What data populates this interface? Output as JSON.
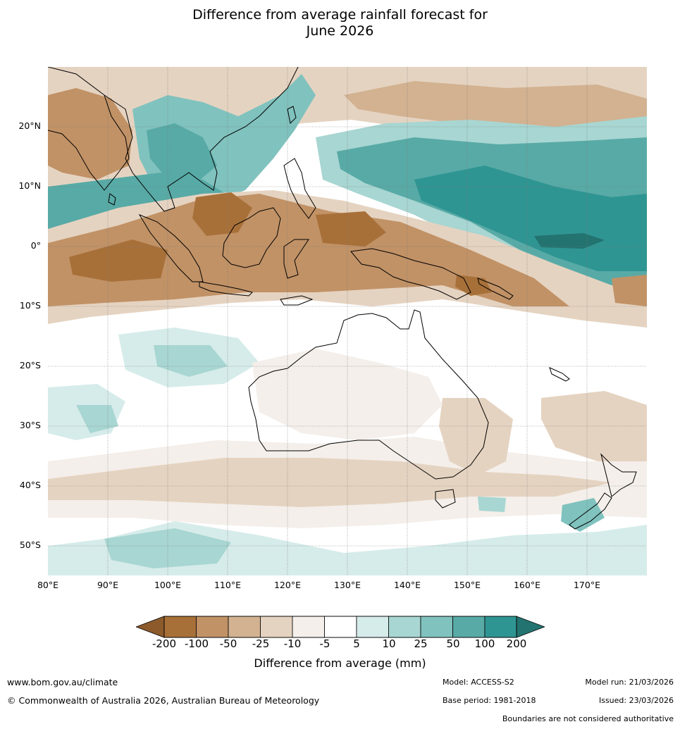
{
  "title": {
    "line1": "Difference from average rainfall forecast for",
    "line2": "June 2026"
  },
  "map": {
    "latitude_labels": [
      "20°N",
      "10°N",
      "0°",
      "10°S",
      "20°S",
      "30°S",
      "40°S",
      "50°S"
    ],
    "longitude_labels": [
      "80°E",
      "90°E",
      "100°E",
      "110°E",
      "120°E",
      "130°E",
      "140°E",
      "150°E",
      "160°E",
      "170°E"
    ],
    "extent": {
      "lon_min": 80,
      "lon_max": 180,
      "lat_min": -55,
      "lat_max": 30
    }
  },
  "colorbar": {
    "title": "Difference from average (mm)",
    "tick_labels": [
      "-200",
      "-100",
      "-50",
      "-25",
      "-10",
      "-5",
      "5",
      "10",
      "25",
      "50",
      "100",
      "200"
    ],
    "colors": [
      "#a87039",
      "#c19266",
      "#d2b291",
      "#e5d3c1",
      "#f4efea",
      "#ffffff",
      "#d6ecea",
      "#a8d6d2",
      "#80c2be",
      "#58aaa6",
      "#2f9592"
    ],
    "under_color": "#8c5a2b",
    "over_color": "#237370"
  },
  "footer": {
    "website": "www.bom.gov.au/climate",
    "copyright": "© Commonwealth of Australia 2026, Australian Bureau of Meteorology",
    "model": "Model: ACCESS-S2",
    "base_period": "Base period: 1981-2018",
    "model_run": "Model run: 21/03/2026",
    "issued": "Issued: 23/03/2026",
    "boundaries_note": "Boundaries are not considered authoritative"
  }
}
